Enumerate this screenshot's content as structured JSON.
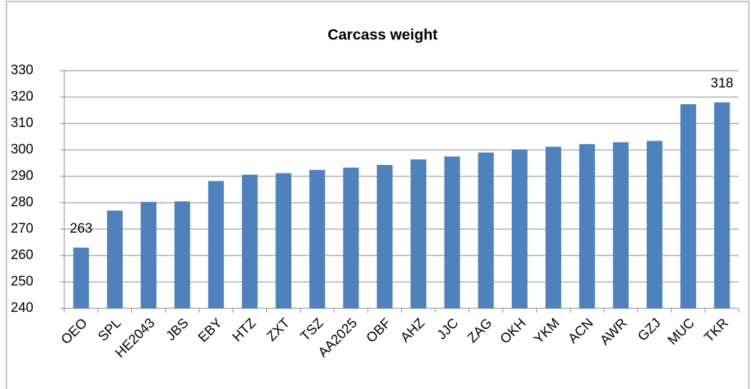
{
  "chart_data": {
    "type": "bar",
    "title": "Carcass weight",
    "categories": [
      "OEO",
      "SPL",
      "HE2043",
      "JBS",
      "EBY",
      "HTZ",
      "ZXT",
      "TSZ",
      "AA2025",
      "OBF",
      "AHZ",
      "JJC",
      "ZAG",
      "OKH",
      "YKM",
      "ACN",
      "AWR",
      "GZJ",
      "MUC",
      "TKR"
    ],
    "values": [
      263,
      277,
      280.3,
      280.5,
      288.2,
      290.6,
      291.2,
      292.4,
      293.3,
      294.3,
      296.4,
      297.5,
      299,
      300.2,
      301.2,
      302.2,
      302.9,
      303.4,
      317.3,
      318
    ],
    "value_labels": [
      "263",
      null,
      null,
      null,
      null,
      null,
      null,
      null,
      null,
      null,
      null,
      null,
      null,
      null,
      null,
      null,
      null,
      null,
      null,
      "318"
    ],
    "color": "#4f81bd",
    "ylim": [
      240,
      330
    ],
    "yticks": [
      240,
      250,
      260,
      270,
      280,
      290,
      300,
      310,
      320,
      330
    ],
    "grid": true
  }
}
